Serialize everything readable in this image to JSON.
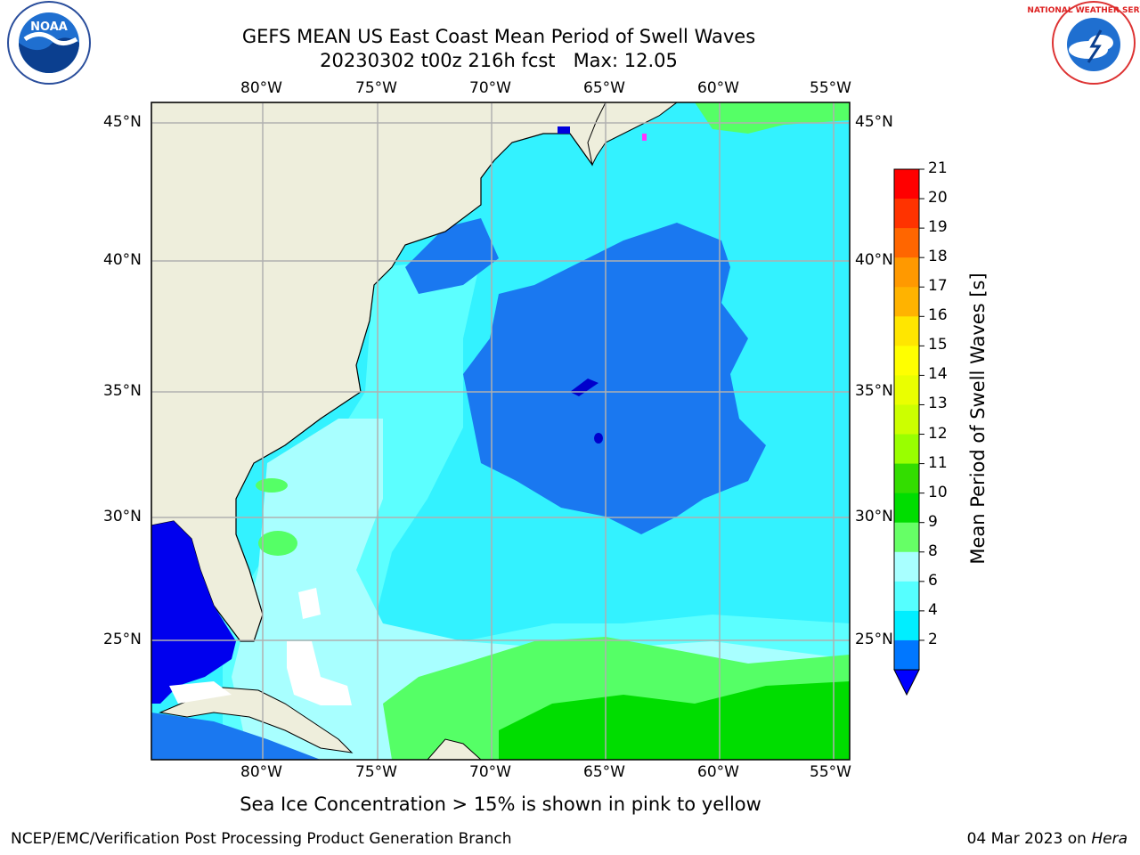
{
  "header": {
    "title_line1": "GEFS MEAN US East Coast Mean Period of Swell Waves",
    "title_line2": "20230302 t00z 216h fcst   Max: 12.05"
  },
  "logos": {
    "left": "NOAA",
    "right": "NATIONAL WEATHER SERVICE",
    "left_ring_text": "NATIONAL OCEANIC AND ATMOSPHERIC ADMINISTRATION · U.S. DEPARTMENT OF COMMERCE"
  },
  "map": {
    "lon_labels": [
      "80°W",
      "75°W",
      "70°W",
      "65°W",
      "60°W",
      "55°W"
    ],
    "lat_labels": [
      "45°N",
      "40°N",
      "35°N",
      "30°N",
      "25°N"
    ],
    "colors": {
      "land": "#eeeedc",
      "grid": "#b0b0b0",
      "coast": "#000000"
    }
  },
  "colorbar": {
    "title": "Mean Period of Swell Waves [s]",
    "ticks": [
      "21",
      "20",
      "19",
      "18",
      "17",
      "16",
      "15",
      "14",
      "13",
      "12",
      "11",
      "10",
      "9",
      "8",
      "6",
      "4",
      "2"
    ],
    "colors": [
      "#ff0000",
      "#ff3300",
      "#ff6600",
      "#ff9900",
      "#ffb300",
      "#ffe600",
      "#ffff00",
      "#eaff00",
      "#ccff00",
      "#99ff00",
      "#33dd00",
      "#00dd00",
      "#66ff66",
      "#a8ffff",
      "#55ffff",
      "#00eeff",
      "#0077ff"
    ],
    "extend_color": "#0000ff"
  },
  "note": "Sea Ice Concentration > 15% is shown in pink to yellow",
  "footer": {
    "left": "NCEP/EMC/Verification Post Processing Product Generation Branch",
    "right_date": "04 Mar 2023 on",
    "right_host": "Hera"
  }
}
